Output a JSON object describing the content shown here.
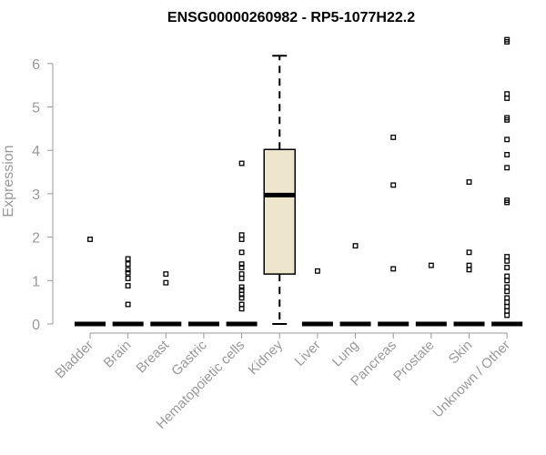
{
  "chart_data": {
    "type": "box",
    "title": "ENSG00000260982 - RP5-1077H22.2",
    "ylabel": "Expression",
    "xlabel": "",
    "ylim": [
      0,
      6.6
    ],
    "yticks": [
      0,
      1,
      2,
      3,
      4,
      5,
      6
    ],
    "grid": false,
    "colors": {
      "box_fill": "#ede6cc",
      "stroke": "#000000",
      "axis": "#999999"
    },
    "categories": [
      "Bladder",
      "Brain",
      "Breast",
      "Gastric",
      "Hematopoietic cells",
      "Kidney",
      "Liver",
      "Lung",
      "Pancreas",
      "Prostate",
      "Skin",
      "Unknown / Other"
    ],
    "boxes": [
      {
        "category": "Bladder",
        "q1": 0,
        "median": 0,
        "q3": 0,
        "whisker_low": 0,
        "whisker_high": 0,
        "outliers": [
          1.95
        ]
      },
      {
        "category": "Brain",
        "q1": 0,
        "median": 0,
        "q3": 0,
        "whisker_low": 0,
        "whisker_high": 0,
        "outliers": [
          0.45,
          0.88,
          1.05,
          1.18,
          1.25,
          1.38,
          1.5
        ]
      },
      {
        "category": "Breast",
        "q1": 0,
        "median": 0,
        "q3": 0,
        "whisker_low": 0,
        "whisker_high": 0,
        "outliers": [
          0.95,
          1.15
        ]
      },
      {
        "category": "Gastric",
        "q1": 0,
        "median": 0,
        "q3": 0,
        "whisker_low": 0,
        "whisker_high": 0,
        "outliers": []
      },
      {
        "category": "Hematopoietic cells",
        "q1": 0,
        "median": 0,
        "q3": 0,
        "whisker_low": 0,
        "whisker_high": 0,
        "outliers": [
          0.35,
          0.45,
          0.6,
          0.68,
          0.78,
          0.85,
          1.05,
          1.15,
          1.3,
          1.38,
          1.65,
          1.95,
          2.05,
          3.7
        ]
      },
      {
        "category": "Kidney",
        "q1": 1.15,
        "median": 2.97,
        "q3": 4.02,
        "whisker_low": 0,
        "whisker_high": 6.18,
        "outliers": []
      },
      {
        "category": "Liver",
        "q1": 0,
        "median": 0,
        "q3": 0,
        "whisker_low": 0,
        "whisker_high": 0,
        "outliers": [
          1.22
        ]
      },
      {
        "category": "Lung",
        "q1": 0,
        "median": 0,
        "q3": 0,
        "whisker_low": 0,
        "whisker_high": 0,
        "outliers": [
          1.8
        ]
      },
      {
        "category": "Pancreas",
        "q1": 0,
        "median": 0,
        "q3": 0,
        "whisker_low": 0,
        "whisker_high": 0,
        "outliers": [
          1.27,
          3.2,
          4.3
        ]
      },
      {
        "category": "Prostate",
        "q1": 0,
        "median": 0,
        "q3": 0,
        "whisker_low": 0,
        "whisker_high": 0,
        "outliers": [
          1.35
        ]
      },
      {
        "category": "Skin",
        "q1": 0,
        "median": 0,
        "q3": 0,
        "whisker_low": 0,
        "whisker_high": 0,
        "outliers": [
          1.25,
          1.35,
          1.65,
          3.27
        ]
      },
      {
        "category": "Unknown / Other",
        "q1": 0,
        "median": 0,
        "q3": 0,
        "whisker_low": 0,
        "whisker_high": 0,
        "outliers": [
          0.2,
          0.3,
          0.4,
          0.5,
          0.6,
          0.75,
          0.85,
          1.0,
          1.1,
          1.3,
          1.45,
          1.55,
          2.8,
          2.85,
          3.6,
          3.9,
          4.25,
          4.7,
          4.75,
          5.2,
          5.3,
          6.5,
          6.55
        ]
      }
    ]
  }
}
